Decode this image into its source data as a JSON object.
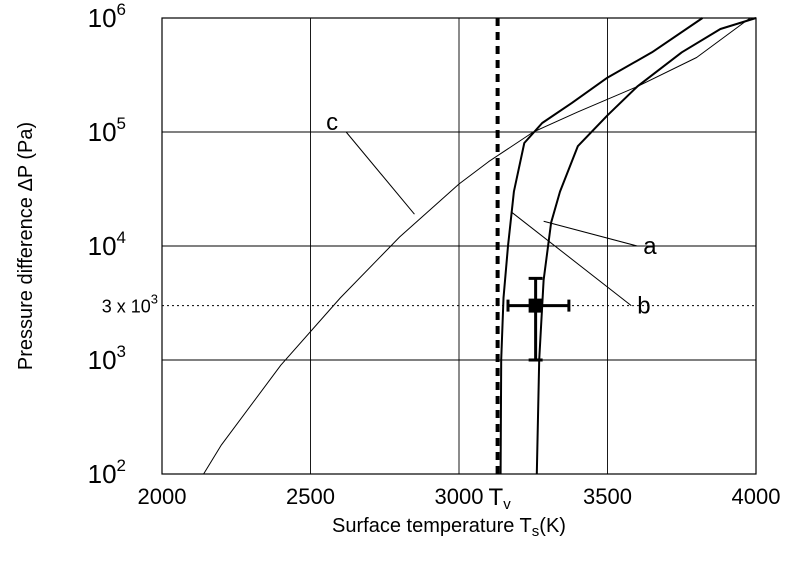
{
  "chart_data": {
    "type": "line",
    "title": "",
    "xlabel": "Surface temperature T",
    "xlabel_sub": "s",
    "xlabel_unit": "(K)",
    "ylabel": "Pressure difference  ΔP (Pa)",
    "y_scale": "log",
    "xlim": [
      2000,
      4000
    ],
    "ylim": [
      100,
      1000000
    ],
    "x_ticks": [
      2000,
      2500,
      3000,
      3500,
      4000
    ],
    "x_tick_labels": [
      "2000",
      "2500",
      "3000",
      "3500",
      "4000"
    ],
    "y_ticks": [
      100,
      1000,
      10000,
      100000,
      1000000
    ],
    "y_tick_bases": [
      "10",
      "10",
      "10",
      "10",
      "10"
    ],
    "y_tick_exps": [
      "2",
      "3",
      "4",
      "5",
      "6"
    ],
    "grid": true,
    "series": [
      {
        "name": "a",
        "x": [
          3262,
          3270,
          3285,
          3310,
          3340,
          3400,
          3500,
          3600,
          3750,
          3880,
          4000
        ],
        "y": [
          100,
          1000,
          5000,
          16000,
          30000,
          75000,
          140000,
          250000,
          500000,
          800000,
          1000000
        ]
      },
      {
        "name": "b",
        "x": [
          3140,
          3142,
          3150,
          3165,
          3185,
          3220,
          3280,
          3380,
          3500,
          3650,
          3820
        ],
        "y": [
          100,
          1000,
          3500,
          10000,
          30000,
          80000,
          120000,
          180000,
          300000,
          500000,
          1000000
        ]
      },
      {
        "name": "c",
        "x": [
          2140,
          2200,
          2400,
          2600,
          2800,
          3000,
          3100,
          3250,
          3400,
          3600,
          3800,
          3980
        ],
        "y": [
          100,
          180,
          900,
          3500,
          12000,
          35000,
          55000,
          100000,
          150000,
          250000,
          450000,
          1000000
        ]
      }
    ],
    "reference_lines": {
      "vertical": {
        "x": 3130,
        "label": "T",
        "label_sub": "v"
      },
      "horizontal": {
        "y": 3000,
        "label_base": "3 x 10",
        "label_exp": "3"
      }
    },
    "measurement": {
      "x": 3258,
      "y": 3000,
      "x_err": [
        3165,
        3370
      ],
      "y_err": [
        1000,
        5200
      ]
    },
    "annotations": [
      {
        "text": "a",
        "from": [
          3285,
          16500
        ],
        "to": [
          3600,
          10000
        ]
      },
      {
        "text": "b",
        "from": [
          3175,
          20000
        ],
        "to": [
          3580,
          3000
        ]
      },
      {
        "text": "c",
        "from": [
          2850,
          19000
        ],
        "to": [
          2620,
          100000
        ]
      }
    ]
  }
}
